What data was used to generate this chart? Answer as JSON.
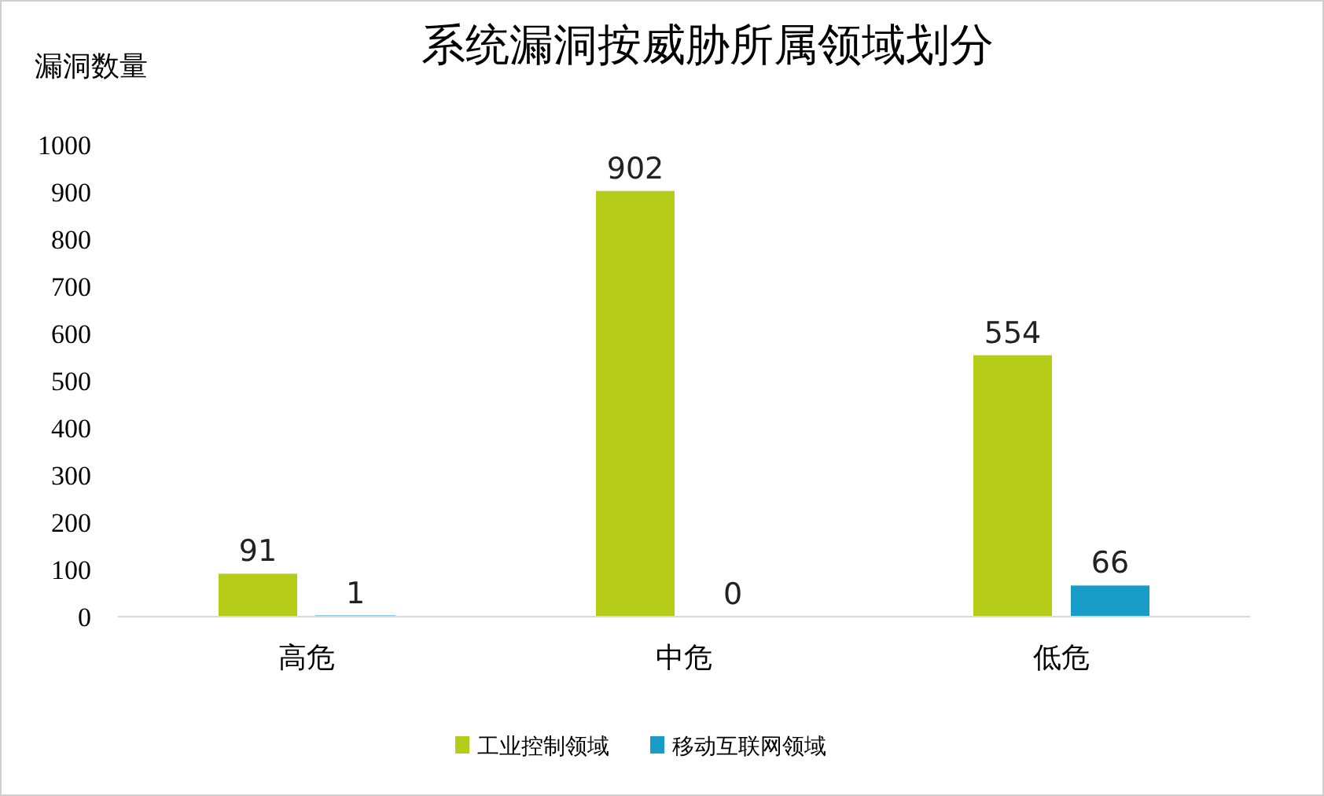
{
  "chart_data": {
    "type": "bar",
    "title": "系统漏洞按威胁所属领域划分",
    "ylabel": "漏洞数量",
    "categories": [
      "高危",
      "中危",
      "低危"
    ],
    "series": [
      {
        "name": "工业控制领域",
        "color": "#b5cc18",
        "values": [
          91,
          902,
          554
        ]
      },
      {
        "name": "移动互联网领域",
        "color": "#1a9cc8",
        "values": [
          1,
          0,
          66
        ]
      }
    ],
    "ylim": [
      0,
      1000
    ],
    "yticks": [
      0,
      100,
      200,
      300,
      400,
      500,
      600,
      700,
      800,
      900,
      1000
    ],
    "grid": false,
    "data_labels": true,
    "legend": "bottom"
  }
}
